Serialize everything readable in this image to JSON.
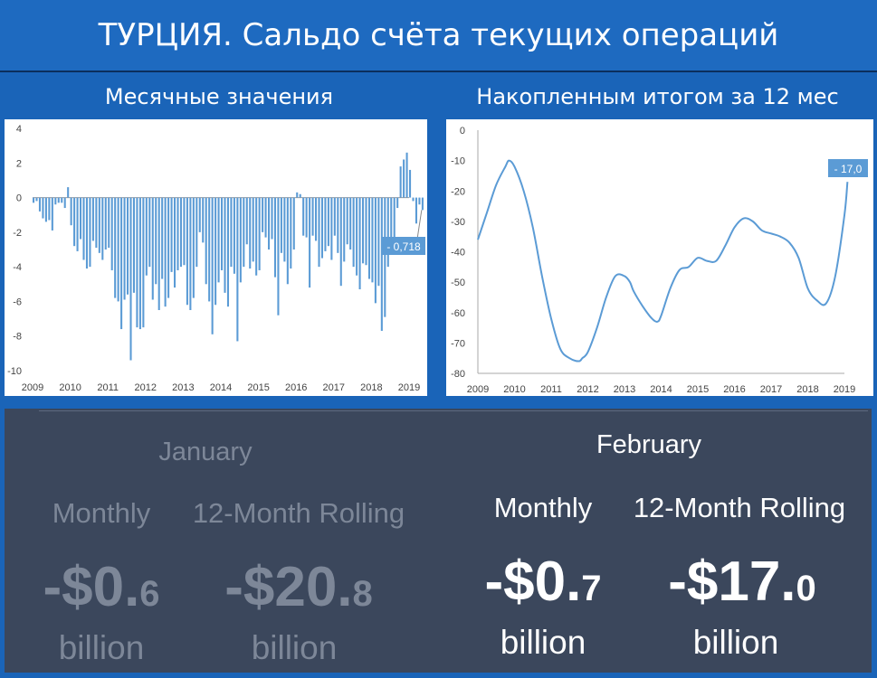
{
  "header": {
    "title": "ТУРЦИЯ. Сальдо счёта текущих операций",
    "left_subtitle": "Месячные значения",
    "right_subtitle": "Накопленным итогом за 12 мес"
  },
  "colors": {
    "header_bg": "#1e6ac0",
    "bar": "#5b9bd5",
    "line": "#5b9bd5",
    "panel_bg": "#3b475c",
    "callout": "#5b9bd5"
  },
  "chart_data": [
    {
      "type": "bar",
      "title": "Месячные значения",
      "x_tick_labels": [
        "2009",
        "2010",
        "2011",
        "2012",
        "2013",
        "2014",
        "2015",
        "2016",
        "2017",
        "2018",
        "2019"
      ],
      "y_tick_labels": [
        "4",
        "2",
        "0",
        "-2",
        "-4",
        "-6",
        "-8",
        "-10"
      ],
      "ylim": [
        -10,
        4
      ],
      "grid": false,
      "start": "2009-01",
      "end": "2019-02",
      "values": [
        -0.3,
        -0.2,
        -0.8,
        -1.2,
        -1.4,
        -1.3,
        -1.9,
        -0.4,
        -0.3,
        -0.3,
        -0.6,
        0.6,
        -1.6,
        -2.8,
        -3.1,
        -2.4,
        -3.6,
        -4.1,
        -4.0,
        -2.5,
        -2.9,
        -3.2,
        -3.6,
        -3.0,
        -2.9,
        -4.2,
        -5.8,
        -6.0,
        -7.6,
        -5.9,
        -5.6,
        -9.4,
        -5.5,
        -7.5,
        -7.6,
        -7.5,
        -4.5,
        -4.0,
        -5.9,
        -5.0,
        -6.5,
        -4.7,
        -6.3,
        -5.8,
        -4.3,
        -5.2,
        -4.2,
        -4.0,
        -3.9,
        -6.2,
        -6.5,
        -5.8,
        -4.0,
        -2.0,
        -2.6,
        -5.0,
        -6.0,
        -7.9,
        -6.2,
        -4.9,
        -4.2,
        -5.5,
        -6.3,
        -4.0,
        -4.4,
        -8.3,
        -4.9,
        -4.0,
        -2.7,
        -4.1,
        -3.7,
        -4.5,
        -4.2,
        -2.0,
        -2.3,
        -3.0,
        -2.4,
        -4.6,
        -6.8,
        -3.2,
        -3.7,
        -5.0,
        -4.1,
        -3.0,
        0.3,
        0.2,
        -2.2,
        -2.3,
        -5.2,
        -2.2,
        -2.5,
        -4.0,
        -3.5,
        -3.1,
        -2.8,
        -3.6,
        -2.2,
        -3.2,
        -5.1,
        -3.7,
        -2.7,
        -3.0,
        -4.0,
        -4.5,
        -5.3,
        -3.8,
        -3.9,
        -4.7,
        -4.9,
        -6.1,
        -5.1,
        -7.7,
        -6.9,
        -4.0,
        -2.8,
        -3.0,
        -0.6,
        1.8,
        2.2,
        2.6,
        1.6,
        -0.2,
        -1.5,
        -0.4,
        -0.718
      ],
      "callout": "- 0,718"
    },
    {
      "type": "line",
      "title": "Накопленным итогом за 12 мес",
      "x_tick_labels": [
        "2009",
        "2010",
        "2011",
        "2012",
        "2013",
        "2014",
        "2015",
        "2016",
        "2017",
        "2018",
        "2019"
      ],
      "y_tick_labels": [
        "0",
        "-10",
        "-20",
        "-30",
        "-40",
        "-50",
        "-60",
        "-70",
        "-80"
      ],
      "ylim": [
        -80,
        0
      ],
      "grid": false,
      "x": [
        2009.0,
        2009.25,
        2009.5,
        2009.75,
        2009.85,
        2010.0,
        2010.25,
        2010.5,
        2010.75,
        2011.0,
        2011.25,
        2011.5,
        2011.75,
        2011.85,
        2012.0,
        2012.25,
        2012.5,
        2012.75,
        2013.0,
        2013.15,
        2013.25,
        2013.5,
        2013.75,
        2013.9,
        2014.0,
        2014.25,
        2014.5,
        2014.75,
        2015.0,
        2015.25,
        2015.5,
        2015.75,
        2016.0,
        2016.25,
        2016.5,
        2016.75,
        2017.0,
        2017.25,
        2017.5,
        2017.75,
        2018.0,
        2018.25,
        2018.5,
        2018.75,
        2019.0,
        2019.083
      ],
      "y": [
        -36,
        -27,
        -18,
        -12,
        -10,
        -12,
        -20,
        -32,
        -48,
        -62,
        -72,
        -75,
        -76,
        -75,
        -73,
        -65,
        -55,
        -48,
        -48,
        -50,
        -53,
        -58,
        -62,
        -63,
        -61,
        -52,
        -46,
        -45,
        -42,
        -43,
        -43,
        -38,
        -32,
        -29,
        -30,
        -33,
        -34,
        -35,
        -37,
        -42,
        -52,
        -56,
        -57,
        -48,
        -28,
        -17
      ],
      "callout": "- 17,0"
    }
  ],
  "bottom": {
    "january": {
      "month": "January",
      "monthly_label": "Monthly",
      "rolling_label": "12-Month Rolling",
      "monthly_value": {
        "main": "-$0.",
        "small": "6"
      },
      "rolling_value": {
        "main": "-$20.",
        "small": "8"
      },
      "unit": "billion"
    },
    "february": {
      "month": "February",
      "monthly_label": "Monthly",
      "rolling_label": "12-Month Rolling",
      "monthly_value": {
        "main": "-$0.",
        "small": "7"
      },
      "rolling_value": {
        "main": "-$17.",
        "small": "0"
      },
      "unit": "billion"
    }
  }
}
